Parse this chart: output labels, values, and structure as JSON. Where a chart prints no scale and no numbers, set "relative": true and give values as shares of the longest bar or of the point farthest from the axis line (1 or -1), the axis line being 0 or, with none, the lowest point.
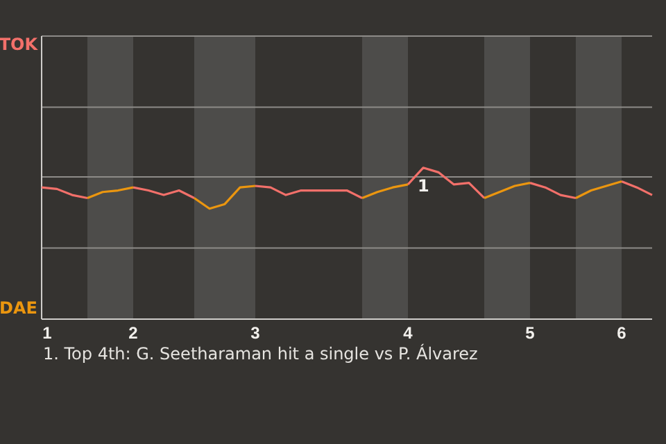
{
  "chart_data": {
    "type": "line",
    "relative": true,
    "categories": [
      "1",
      null,
      null,
      null,
      null,
      null,
      "2",
      null,
      null,
      null,
      null,
      null,
      null,
      null,
      "3",
      null,
      null,
      null,
      null,
      null,
      null,
      null,
      null,
      null,
      "4",
      null,
      null,
      null,
      null,
      null,
      null,
      null,
      "5",
      null,
      null,
      null,
      null,
      null,
      "6",
      null,
      null
    ],
    "series": [
      {
        "name": "TOK",
        "color": "#f2706a",
        "values": [
          0.87,
          0.86,
          0.82,
          0.8,
          null,
          null,
          0.87,
          0.85,
          0.82,
          0.85,
          0.8,
          null,
          null,
          null,
          0.88,
          0.87,
          0.82,
          0.85,
          0.85,
          0.85,
          0.85,
          0.8,
          null,
          null,
          0.89,
          1,
          0.97,
          0.89,
          0.9,
          0.8,
          null,
          null,
          0.9,
          0.87,
          0.82,
          0.8,
          null,
          null,
          0.91,
          0.87,
          0.82
        ]
      },
      {
        "name": "DAE",
        "color": "#eb960f",
        "values": [
          null,
          null,
          null,
          0.8,
          0.84,
          0.85,
          0.87,
          null,
          null,
          null,
          0.8,
          0.73,
          0.76,
          0.87,
          0.88,
          null,
          null,
          null,
          null,
          null,
          null,
          0.8,
          0.84,
          0.87,
          0.89,
          null,
          null,
          null,
          null,
          0.8,
          0.84,
          0.88,
          0.9,
          null,
          null,
          0.8,
          0.85,
          0.88,
          0.91,
          null,
          null
        ]
      }
    ],
    "legend": "left",
    "ref_lines": [
      {
        "axis": "y",
        "value": 0.47,
        "color": "#8d8b88"
      },
      {
        "axis": "y",
        "value": 0.94,
        "color": "#8d8b88"
      },
      {
        "axis": "y",
        "value": 1.4,
        "color": "#8d8b88"
      },
      {
        "axis": "y",
        "value": 1.87,
        "color": "#8d8b88"
      }
    ],
    "annotations": [
      {
        "text": "1",
        "y": 1
      },
      "1. Top 4th: G. Seetharaman hit a single vs P. Álvarez"
    ]
  }
}
